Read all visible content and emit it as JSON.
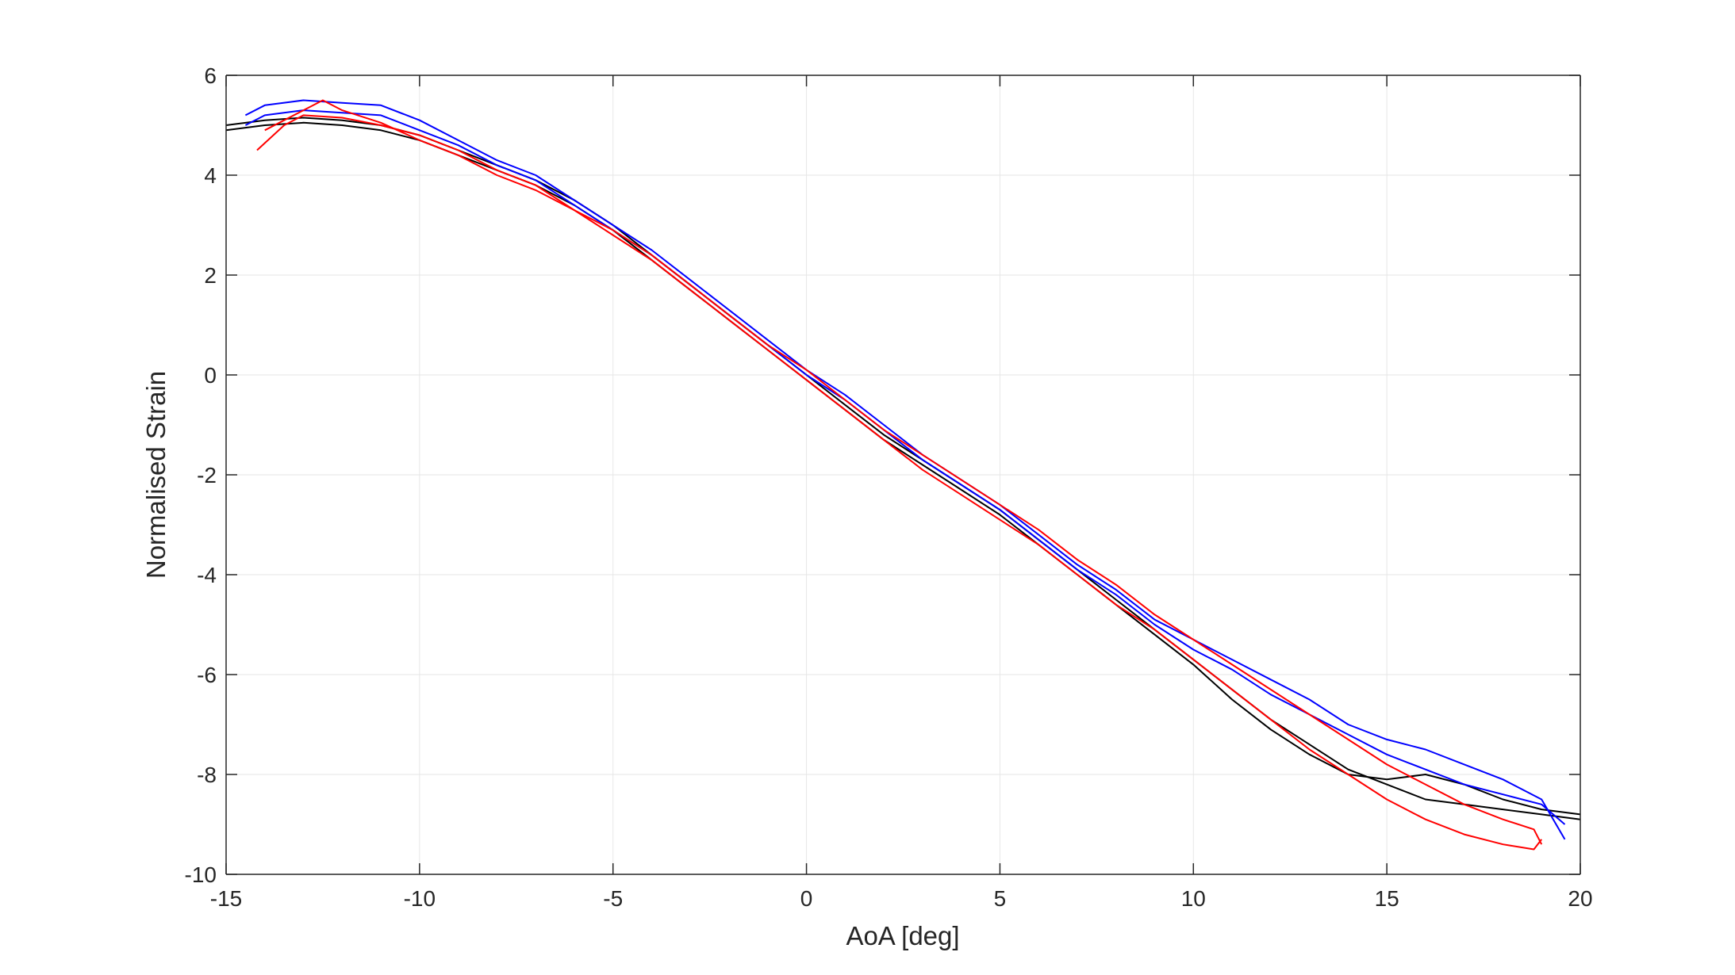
{
  "chart_data": {
    "type": "line",
    "title": "",
    "xlabel": "AoA [deg]",
    "ylabel": "Normalised Strain",
    "xlim": [
      -15,
      20
    ],
    "ylim": [
      -10,
      6
    ],
    "xticks": [
      -15,
      -10,
      -5,
      0,
      5,
      10,
      15,
      20
    ],
    "yticks": [
      -10,
      -8,
      -6,
      -4,
      -2,
      0,
      2,
      4,
      6
    ],
    "grid": true,
    "legend": "none",
    "colors": {
      "black": "#000000",
      "blue": "#0000ff",
      "red": "#ff0000",
      "grid": "#e6e6e6",
      "axis": "#262626"
    },
    "series": [
      {
        "color": "#000000",
        "x": [
          -15,
          -14,
          -13,
          -12,
          -11,
          -10,
          -9,
          -8,
          -7,
          -6,
          -5,
          -4,
          -3,
          -2,
          -1,
          0,
          1,
          2,
          3,
          4,
          5,
          6,
          7,
          8,
          9,
          10,
          11,
          12,
          13,
          14,
          15,
          16,
          17,
          18,
          19,
          20
        ],
        "y": [
          5.0,
          5.1,
          5.15,
          5.1,
          5.0,
          4.8,
          4.5,
          4.2,
          3.9,
          3.5,
          3.0,
          2.4,
          1.8,
          1.2,
          0.6,
          0.0,
          -0.6,
          -1.2,
          -1.7,
          -2.2,
          -2.7,
          -3.3,
          -3.9,
          -4.5,
          -5.1,
          -5.7,
          -6.3,
          -6.9,
          -7.4,
          -7.9,
          -8.2,
          -8.5,
          -8.6,
          -8.7,
          -8.8,
          -8.9
        ]
      },
      {
        "color": "#000000",
        "x": [
          -15,
          -14,
          -13,
          -12,
          -11,
          -10,
          -9,
          -8,
          -7,
          -6,
          -5,
          -4,
          -3,
          -2,
          -1,
          0,
          1,
          2,
          3,
          4,
          5,
          6,
          7,
          8,
          9,
          10,
          11,
          12,
          13,
          14,
          15,
          16,
          17,
          18,
          19,
          20
        ],
        "y": [
          4.9,
          5.0,
          5.05,
          5.0,
          4.9,
          4.7,
          4.4,
          4.1,
          3.8,
          3.4,
          2.9,
          2.3,
          1.7,
          1.1,
          0.5,
          -0.1,
          -0.7,
          -1.3,
          -1.8,
          -2.3,
          -2.8,
          -3.4,
          -4.0,
          -4.6,
          -5.2,
          -5.8,
          -6.5,
          -7.1,
          -7.6,
          -8.0,
          -8.1,
          -8.0,
          -8.2,
          -8.5,
          -8.7,
          -8.8
        ]
      },
      {
        "color": "#0000ff",
        "x": [
          -14.5,
          -14,
          -13,
          -12,
          -11,
          -10,
          -9,
          -8,
          -7,
          -6,
          -5,
          -4,
          -3,
          -2,
          -1,
          0,
          1,
          2,
          3,
          4,
          5,
          6,
          7,
          8,
          9,
          10,
          11,
          12,
          13,
          14,
          15,
          16,
          17,
          18,
          19,
          19.6
        ],
        "y": [
          5.2,
          5.4,
          5.5,
          5.45,
          5.4,
          5.1,
          4.7,
          4.3,
          4.0,
          3.5,
          3.0,
          2.5,
          1.9,
          1.3,
          0.7,
          0.1,
          -0.4,
          -1.0,
          -1.6,
          -2.1,
          -2.6,
          -3.2,
          -3.8,
          -4.3,
          -4.9,
          -5.3,
          -5.7,
          -6.1,
          -6.5,
          -7.0,
          -7.3,
          -7.5,
          -7.8,
          -8.1,
          -8.5,
          -9.3
        ]
      },
      {
        "color": "#0000ff",
        "x": [
          -14.5,
          -14,
          -13,
          -12,
          -11,
          -10,
          -9,
          -8,
          -7,
          -6,
          -5,
          -4,
          -3,
          -2,
          -1,
          0,
          1,
          2,
          3,
          4,
          5,
          6,
          7,
          8,
          9,
          10,
          11,
          12,
          13,
          14,
          15,
          16,
          17,
          18,
          19,
          19.6
        ],
        "y": [
          5.0,
          5.2,
          5.3,
          5.25,
          5.2,
          4.9,
          4.6,
          4.2,
          3.9,
          3.4,
          2.9,
          2.4,
          1.8,
          1.2,
          0.6,
          0.0,
          -0.5,
          -1.1,
          -1.7,
          -2.2,
          -2.7,
          -3.3,
          -3.9,
          -4.4,
          -5.0,
          -5.5,
          -5.9,
          -6.4,
          -6.8,
          -7.2,
          -7.6,
          -7.9,
          -8.2,
          -8.4,
          -8.6,
          -9.0
        ]
      },
      {
        "color": "#ff0000",
        "x": [
          -14.2,
          -13.5,
          -13,
          -12,
          -11,
          -10,
          -9,
          -8,
          -7,
          -6,
          -5,
          -4,
          -3,
          -2,
          -1,
          0,
          1,
          2,
          3,
          4,
          5,
          6,
          7,
          8,
          9,
          10,
          11,
          12,
          13,
          14,
          15,
          16,
          17,
          18,
          18.8,
          19
        ],
        "y": [
          4.5,
          5.0,
          5.2,
          5.15,
          5.0,
          4.8,
          4.5,
          4.1,
          3.8,
          3.3,
          2.8,
          2.3,
          1.7,
          1.1,
          0.5,
          -0.1,
          -0.7,
          -1.3,
          -1.9,
          -2.4,
          -2.9,
          -3.4,
          -4.0,
          -4.6,
          -5.1,
          -5.7,
          -6.3,
          -6.9,
          -7.5,
          -8.0,
          -8.5,
          -8.9,
          -9.2,
          -9.4,
          -9.5,
          -9.3
        ]
      },
      {
        "color": "#ff0000",
        "x": [
          -14,
          -13,
          -12.5,
          -12,
          -11,
          -10,
          -9,
          -8,
          -7,
          -6,
          -5,
          -4,
          -3,
          -2,
          -1,
          0,
          1,
          2,
          3,
          4,
          5,
          6,
          7,
          8,
          9,
          10,
          11,
          12,
          13,
          14,
          15,
          16,
          17,
          18,
          18.8,
          19
        ],
        "y": [
          4.9,
          5.3,
          5.5,
          5.3,
          5.05,
          4.7,
          4.4,
          4.0,
          3.7,
          3.3,
          2.9,
          2.4,
          1.8,
          1.2,
          0.6,
          0.1,
          -0.5,
          -1.1,
          -1.6,
          -2.1,
          -2.6,
          -3.1,
          -3.7,
          -4.2,
          -4.8,
          -5.3,
          -5.8,
          -6.3,
          -6.8,
          -7.3,
          -7.8,
          -8.2,
          -8.6,
          -8.9,
          -9.1,
          -9.4
        ]
      }
    ]
  }
}
